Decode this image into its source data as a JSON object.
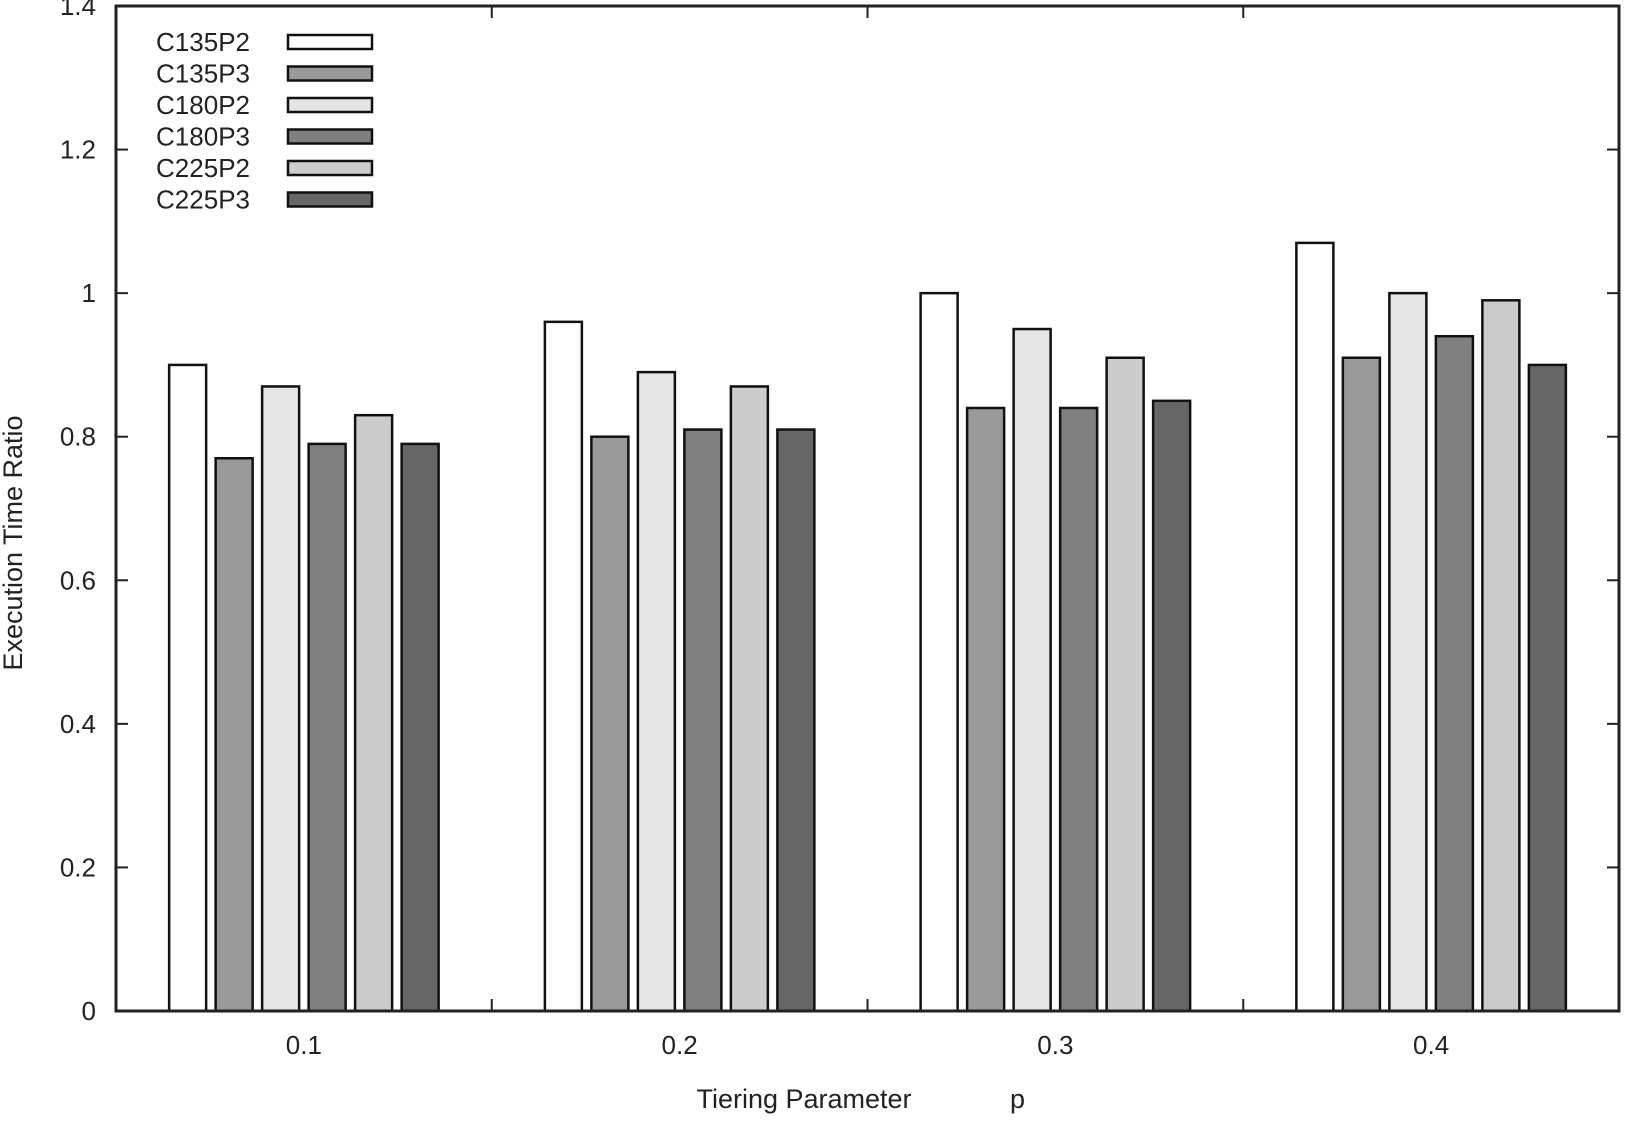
{
  "chart_data": {
    "type": "bar",
    "title": "",
    "xlabel": "Tiering Parameter",
    "xlabel_var": "p",
    "ylabel": "Execution Time Ratio",
    "ylim": [
      0,
      1.4
    ],
    "yticks": [
      0,
      0.2,
      0.4,
      0.6,
      0.8,
      1,
      1.2,
      1.4
    ],
    "ytick_labels": [
      "0",
      "0.2",
      "0.4",
      "0.6",
      "0.8",
      "1",
      "1.2",
      "1.4"
    ],
    "categories": [
      "0.1",
      "0.2",
      "0.3",
      "0.4"
    ],
    "grid": false,
    "legend_position": "top-left",
    "series": [
      {
        "name": "C135P2",
        "color": "#ffffff",
        "values": [
          0.9,
          0.96,
          1.0,
          1.07
        ]
      },
      {
        "name": "C135P3",
        "color": "#999999",
        "values": [
          0.77,
          0.8,
          0.84,
          0.91
        ]
      },
      {
        "name": "C180P2",
        "color": "#e5e5e5",
        "values": [
          0.87,
          0.89,
          0.95,
          1.0
        ]
      },
      {
        "name": "C180P3",
        "color": "#808080",
        "values": [
          0.79,
          0.81,
          0.84,
          0.94
        ]
      },
      {
        "name": "C225P2",
        "color": "#cccccc",
        "values": [
          0.83,
          0.87,
          0.91,
          0.99
        ]
      },
      {
        "name": "C225P3",
        "color": "#666666",
        "values": [
          0.79,
          0.81,
          0.85,
          0.9
        ]
      }
    ]
  }
}
